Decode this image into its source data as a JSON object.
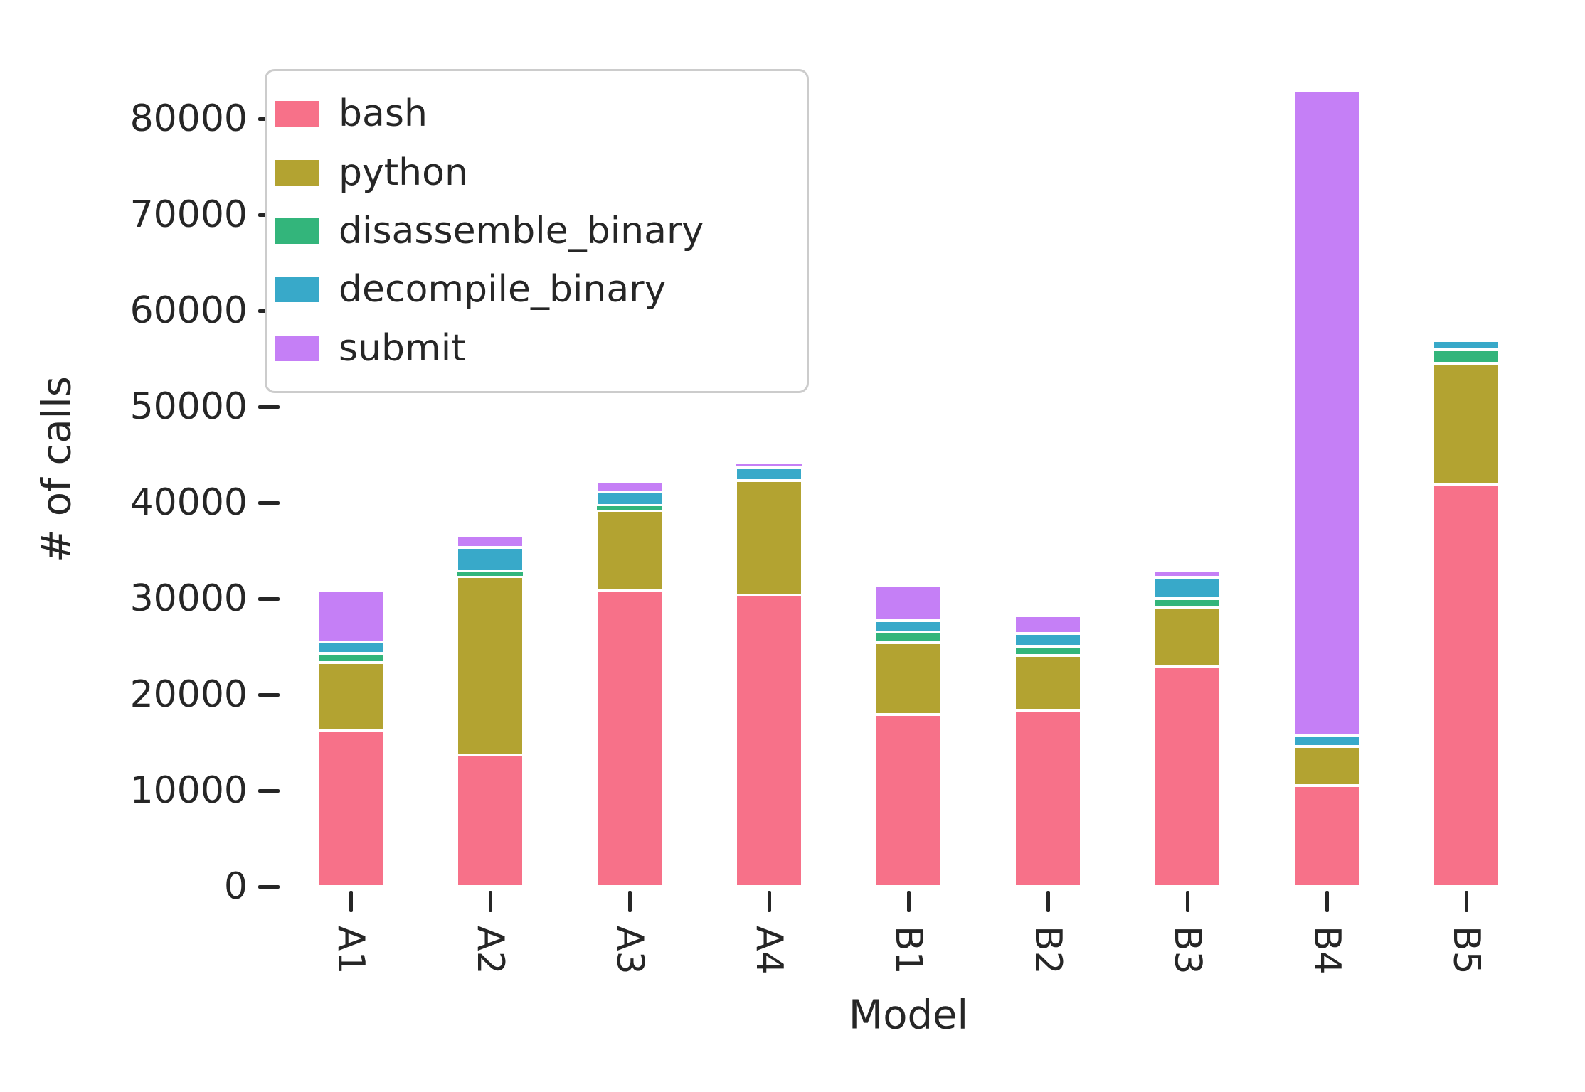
{
  "chart_data": {
    "type": "bar",
    "stacked": true,
    "title": "",
    "xlabel": "Model",
    "ylabel": "# of calls",
    "categories": [
      "A1",
      "A2",
      "A3",
      "A4",
      "B1",
      "B2",
      "B3",
      "B4",
      "B5"
    ],
    "series": [
      {
        "name": "bash",
        "color": "#f77189",
        "values": [
          16300,
          13700,
          30800,
          30400,
          17900,
          18400,
          22900,
          10500,
          41900
        ]
      },
      {
        "name": "python",
        "color": "#b3a331",
        "values": [
          7000,
          18600,
          8400,
          11900,
          7500,
          5700,
          6200,
          4100,
          12600
        ]
      },
      {
        "name": "disassemble_binary",
        "color": "#33b57b",
        "values": [
          1000,
          500,
          500,
          0,
          1100,
          900,
          900,
          0,
          1400
        ]
      },
      {
        "name": "decompile_binary",
        "color": "#38a9c9",
        "values": [
          1200,
          2500,
          1400,
          1400,
          1200,
          1400,
          2200,
          1100,
          1000
        ]
      },
      {
        "name": "submit",
        "color": "#c57ff6",
        "values": [
          5300,
          1200,
          1100,
          400,
          3700,
          1800,
          800,
          67300,
          0
        ]
      }
    ],
    "totals": [
      30800,
      36500,
      42200,
      44100,
      31400,
      28200,
      33000,
      83000,
      56900
    ],
    "yticks": [
      0,
      10000,
      20000,
      30000,
      40000,
      50000,
      60000,
      70000,
      80000
    ],
    "ytick_labels": [
      "0",
      "10000",
      "20000",
      "30000",
      "40000",
      "50000",
      "60000",
      "70000",
      "80000"
    ],
    "ylim": [
      0,
      84000
    ],
    "grid": false,
    "legend_position": "upper left",
    "text_color": "#262626",
    "legend_border_color": "#cccccc"
  }
}
